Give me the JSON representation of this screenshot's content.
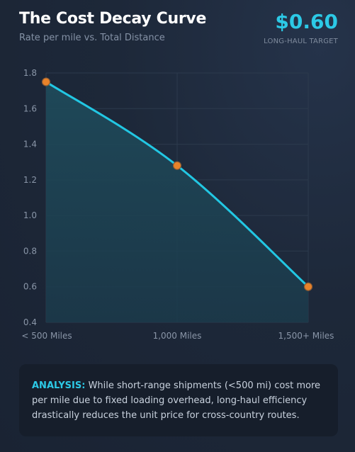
{
  "header": {
    "title": "The Cost Decay Curve",
    "subtitle": "Rate per mile vs. Total Distance",
    "metric_value": "$0.60",
    "metric_label": "LONG-HAUL TARGET"
  },
  "chart_data": {
    "type": "area",
    "categories": [
      "< 500 Miles",
      "1,000 Miles",
      "1,500+ Miles"
    ],
    "values": [
      1.75,
      1.28,
      0.6
    ],
    "ylim": [
      0.4,
      1.8
    ],
    "yticks": [
      "1.8",
      "1.6",
      "1.4",
      "1.2",
      "1.0",
      "0.8",
      "0.6",
      "0.4"
    ],
    "line_color": "#22c7e3",
    "point_color": "#e8832a",
    "grid": true
  },
  "analysis": {
    "label": "ANALYSIS:",
    "text": "While short-range shipments (<500 mi) cost more per mile due to fixed loading overhead, long-haul efficiency drastically reduces the unit price for cross-country routes."
  }
}
